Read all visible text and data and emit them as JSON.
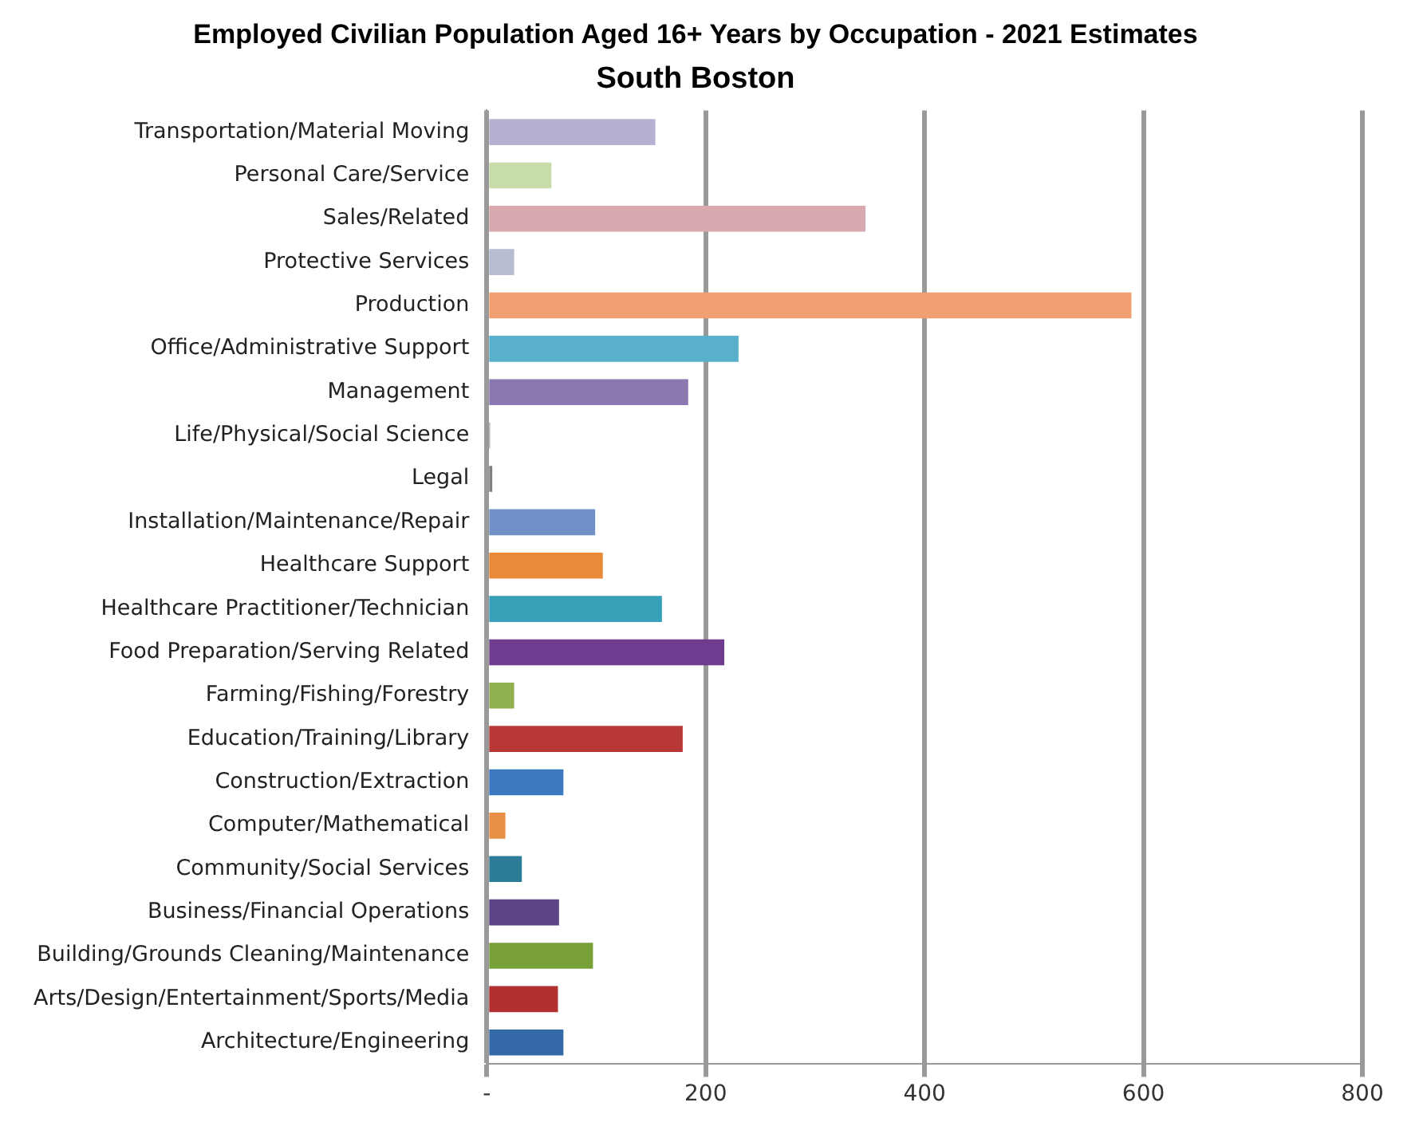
{
  "chart_data": {
    "type": "bar",
    "orientation": "horizontal",
    "title": "Employed Civilian Population Aged 16+ Years by Occupation - 2021 Estimates",
    "subtitle": "South Boston",
    "categories": [
      "Transportation/Material Moving",
      "Personal Care/Service",
      "Sales/Related",
      "Protective Services",
      "Production",
      "Office/Administrative Support",
      "Management",
      "Life/Physical/Social Science",
      "Legal",
      "Installation/Maintenance/Repair",
      "Healthcare Support",
      "Healthcare Practitioner/Technician",
      "Food Preparation/Serving Related",
      "Farming/Fishing/Forestry",
      "Education/Training/Library",
      "Construction/Extraction",
      "Computer/Mathematical",
      "Community/Social Services",
      "Business/Financial Operations",
      "Building/Grounds Cleaning/Maintenance",
      "Arts/Design/Entertainment/Sports/Media",
      "Architecture/Engineering"
    ],
    "values": [
      154,
      59,
      346,
      25,
      589,
      230,
      184,
      3,
      5,
      99,
      106,
      160,
      217,
      25,
      179,
      70,
      17,
      32,
      66,
      97,
      65,
      70
    ],
    "colors": [
      "#b8b0d0",
      "#c8dca8",
      "#d8aab0",
      "#b8bcd0",
      "#f0a070",
      "#58b0cc",
      "#8c78b0",
      "#a0a0a0",
      "#808080",
      "#7090c8",
      "#e88a38",
      "#38a0b8",
      "#703c90",
      "#90b050",
      "#b83838",
      "#3c78c0",
      "#e89048",
      "#2c7c98",
      "#5c4488",
      "#78a038",
      "#b03030",
      "#346aa8"
    ],
    "xlim": [
      0,
      800
    ],
    "xticks": [
      {
        "value": 0,
        "label": "-"
      },
      200,
      400,
      600,
      800
    ],
    "grid": "x"
  }
}
